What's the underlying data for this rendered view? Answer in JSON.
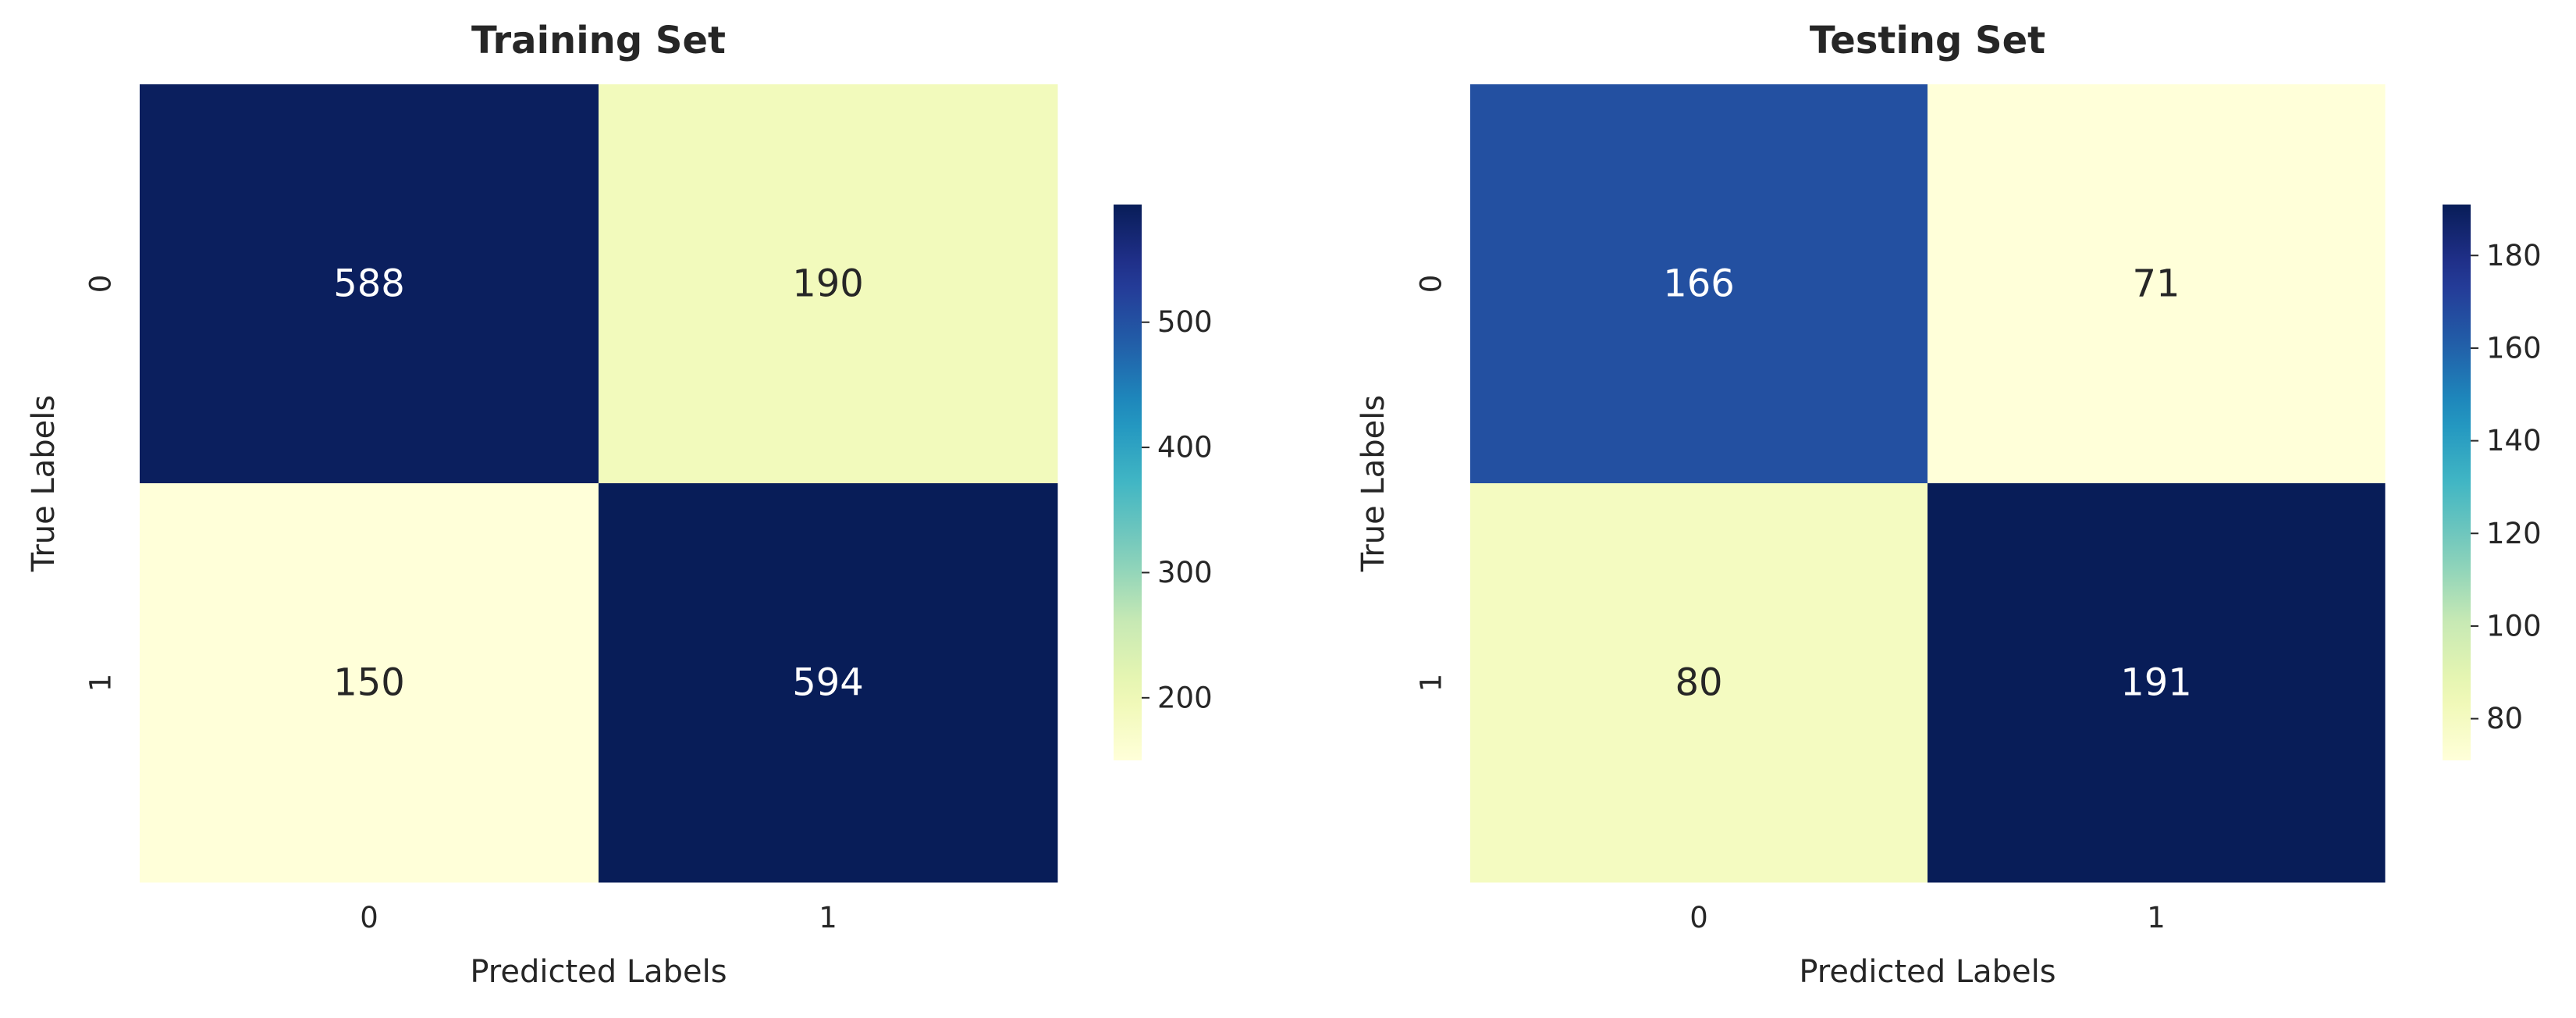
{
  "chart_data": [
    {
      "type": "heatmap",
      "title": "Training Set",
      "xlabel": "Predicted Labels",
      "ylabel": "True Labels",
      "x_categories": [
        "0",
        "1"
      ],
      "y_categories": [
        "0",
        "1"
      ],
      "values": [
        [
          588,
          190
        ],
        [
          150,
          594
        ]
      ],
      "colormap": "YlGnBu",
      "colorbar": {
        "range": [
          150,
          594
        ],
        "ticks": [
          200,
          300,
          400,
          500
        ]
      }
    },
    {
      "type": "heatmap",
      "title": "Testing Set",
      "xlabel": "Predicted Labels",
      "ylabel": "True Labels",
      "x_categories": [
        "0",
        "1"
      ],
      "y_categories": [
        "0",
        "1"
      ],
      "values": [
        [
          166,
          71
        ],
        [
          80,
          191
        ]
      ],
      "colormap": "YlGnBu",
      "colorbar": {
        "range": [
          71,
          191
        ],
        "ticks": [
          80,
          100,
          120,
          140,
          160,
          180
        ]
      }
    }
  ]
}
